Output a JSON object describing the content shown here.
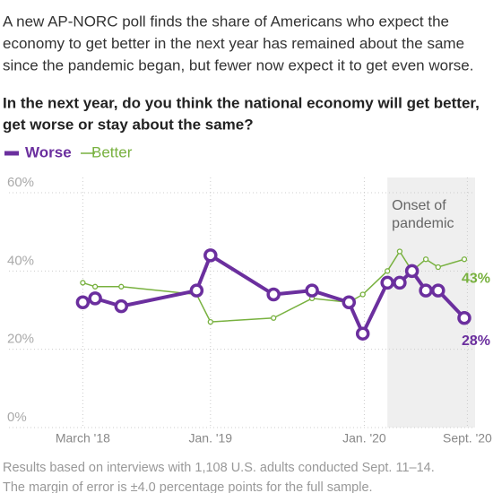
{
  "chart_data": {
    "type": "line",
    "subtitle": [
      "A new AP-NORC poll finds the share of Americans who expect the",
      "economy to get better in the next year has remained about the same",
      "since the pandemic began, but fewer now expect it to get even worse."
    ],
    "question": [
      "In the next year, do you think the national economy will get better,",
      "get worse or stay about the same?"
    ],
    "x": [
      2018.17,
      2018.25,
      2018.42,
      2018.91,
      2019.0,
      2019.41,
      2019.66,
      2019.9,
      2019.99,
      2020.15,
      2020.23,
      2020.31,
      2020.4,
      2020.48,
      2020.65
    ],
    "series": [
      {
        "name": "Worse",
        "color": "#6b2f9e",
        "values": [
          32,
          33,
          31,
          35,
          44,
          34,
          35,
          32,
          24,
          37,
          37,
          40,
          35,
          35,
          28
        ],
        "value_labels": [
          null,
          null,
          null,
          null,
          null,
          null,
          null,
          null,
          null,
          null,
          null,
          null,
          null,
          null,
          "28%"
        ]
      },
      {
        "name": "Better",
        "color": "#78b13f",
        "values": [
          37,
          36,
          36,
          34,
          27,
          28,
          33,
          32,
          34,
          40,
          45,
          40,
          43,
          41,
          43
        ],
        "value_labels": [
          null,
          null,
          null,
          null,
          null,
          null,
          null,
          null,
          null,
          null,
          null,
          null,
          null,
          null,
          "43%"
        ]
      }
    ],
    "xlim": [
      2017.69,
      2020.72
    ],
    "xticks": [
      {
        "value": 2018.17,
        "label": "March '18"
      },
      {
        "value": 2019,
        "label": "Jan. '19"
      },
      {
        "value": 2020,
        "label": "Jan. '20"
      },
      {
        "value": 2020.67,
        "label": "Sept. '20"
      }
    ],
    "ylim": [
      0,
      60
    ],
    "yticks": [
      {
        "value": 0,
        "label": "0%"
      },
      {
        "value": 20,
        "label": "20%"
      },
      {
        "value": 40,
        "label": "40%"
      },
      {
        "value": 60,
        "label": "60%"
      }
    ],
    "grid": true,
    "annotation": {
      "lines": [
        "Onset of",
        "pandemic"
      ],
      "x_start": 2020.15
    },
    "footer": [
      "Results based on interviews with 1,108 U.S. adults conducted Sept. 11–14.",
      "The margin of error is ±4.0 percentage points for the full sample."
    ]
  }
}
